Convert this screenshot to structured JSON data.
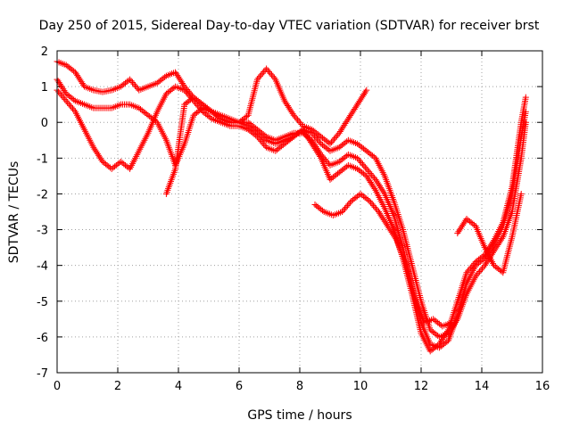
{
  "chart_data": {
    "type": "scatter",
    "title": "Day 250 of 2015, Sidereal Day-to-day VTEC variation (SDTVAR) for receiver brst",
    "xlabel": "GPS time / hours",
    "ylabel": "SDTVAR / TECUs",
    "xlim": [
      0,
      16
    ],
    "ylim": [
      -7,
      2
    ],
    "xticks": [
      0,
      2,
      4,
      6,
      8,
      10,
      12,
      14,
      16
    ],
    "yticks": [
      -7,
      -6,
      -5,
      -4,
      -3,
      -2,
      -1,
      0,
      1,
      2
    ],
    "grid": true,
    "marker": "+",
    "color": "#ff0000",
    "series": [
      {
        "x": [
          0.0,
          0.3,
          0.6,
          0.9,
          1.2,
          1.5,
          1.8,
          2.1,
          2.4,
          2.7,
          3.0,
          3.3,
          3.6,
          3.9,
          4.2,
          4.5,
          4.8,
          5.1,
          5.4,
          5.7,
          6.0,
          6.3,
          6.6,
          6.9,
          7.2,
          7.5,
          7.8,
          8.1,
          8.4,
          8.7,
          9.0,
          9.3,
          9.6,
          9.9,
          10.2,
          10.5,
          10.8,
          11.1,
          11.4,
          11.7,
          12.0,
          12.3,
          12.6,
          12.9,
          13.2,
          13.5,
          13.8,
          14.1,
          14.4,
          14.7,
          15.0,
          15.3,
          15.45
        ],
        "y": [
          1.7,
          1.6,
          1.4,
          1.0,
          0.9,
          0.85,
          0.9,
          1.0,
          1.2,
          0.9,
          1.0,
          1.1,
          1.3,
          1.4,
          1.0,
          0.7,
          0.5,
          0.3,
          0.2,
          0.1,
          0.0,
          -0.1,
          -0.3,
          -0.5,
          -0.6,
          -0.5,
          -0.4,
          -0.2,
          -0.3,
          -0.6,
          -0.8,
          -0.7,
          -0.5,
          -0.6,
          -0.8,
          -1.0,
          -1.5,
          -2.2,
          -3.0,
          -4.0,
          -5.0,
          -5.8,
          -6.0,
          -5.9,
          -5.5,
          -4.8,
          -4.3,
          -4.0,
          -3.6,
          -3.2,
          -2.5,
          -1.0,
          0.0
        ]
      },
      {
        "x": [
          0.0,
          0.3,
          0.6,
          0.9,
          1.2,
          1.5,
          1.8,
          2.1,
          2.4,
          2.7,
          3.0,
          3.3,
          3.6,
          3.9,
          4.2,
          4.5,
          4.8,
          5.1,
          5.4,
          5.7,
          6.0,
          6.3,
          6.6,
          6.9,
          7.2,
          7.5,
          7.8,
          8.1,
          8.4,
          8.7,
          9.0,
          9.3,
          9.6,
          9.9,
          10.2,
          10.5,
          10.8,
          11.1,
          11.4,
          11.7,
          12.0,
          12.3,
          12.6,
          12.9,
          13.2,
          13.5,
          13.8,
          14.1,
          14.4,
          14.7,
          15.0,
          15.3,
          15.45
        ],
        "y": [
          1.2,
          0.8,
          0.6,
          0.5,
          0.4,
          0.4,
          0.4,
          0.5,
          0.5,
          0.4,
          0.2,
          0.0,
          -0.5,
          -1.2,
          -0.6,
          0.2,
          0.4,
          0.3,
          0.1,
          0.0,
          0.0,
          0.0,
          -0.2,
          -0.4,
          -0.5,
          -0.4,
          -0.3,
          -0.3,
          -0.5,
          -0.9,
          -1.2,
          -1.1,
          -0.9,
          -1.0,
          -1.3,
          -1.6,
          -2.0,
          -2.6,
          -3.5,
          -4.6,
          -5.6,
          -6.2,
          -6.3,
          -6.1,
          -5.4,
          -4.5,
          -4.0,
          -3.8,
          -3.4,
          -2.9,
          -2.0,
          -0.4,
          0.3
        ]
      },
      {
        "x": [
          0.0,
          0.3,
          0.6,
          0.9,
          1.2,
          1.5,
          1.8,
          2.1,
          2.4,
          2.7,
          3.0,
          3.3,
          3.6,
          3.9,
          4.2,
          4.5,
          4.8,
          5.1,
          5.4,
          5.7,
          6.0,
          6.3,
          6.6,
          6.9,
          7.2,
          7.5,
          7.8,
          8.1,
          8.4,
          8.7,
          9.0,
          9.3,
          9.6,
          9.9,
          10.2,
          10.5,
          10.8,
          11.1,
          11.4,
          11.7,
          12.0,
          12.3,
          12.6,
          12.9,
          13.2,
          13.5,
          13.8,
          14.1,
          14.4,
          14.7,
          15.0,
          15.3,
          15.45
        ],
        "y": [
          0.9,
          0.6,
          0.3,
          -0.2,
          -0.7,
          -1.1,
          -1.3,
          -1.1,
          -1.3,
          -0.8,
          -0.3,
          0.3,
          0.8,
          1.0,
          0.9,
          0.6,
          0.3,
          0.1,
          0.0,
          -0.1,
          -0.1,
          -0.2,
          -0.4,
          -0.7,
          -0.8,
          -0.6,
          -0.4,
          -0.2,
          -0.6,
          -1.0,
          -1.6,
          -1.4,
          -1.2,
          -1.3,
          -1.5,
          -1.9,
          -2.4,
          -3.0,
          -3.8,
          -4.8,
          -5.9,
          -6.4,
          -6.2,
          -5.8,
          -5.0,
          -4.2,
          -3.9,
          -3.7,
          -3.3,
          -2.8,
          -1.8,
          0.0,
          0.7
        ]
      },
      {
        "x": [
          3.6,
          3.9,
          4.2,
          4.5,
          4.8,
          5.1,
          5.4,
          5.7,
          6.0,
          6.3,
          6.6,
          6.9,
          7.2,
          7.5,
          7.8,
          8.1,
          8.4,
          8.7,
          9.0,
          9.3,
          9.6,
          9.9,
          10.2
        ],
        "y": [
          -2.0,
          -1.3,
          0.5,
          0.7,
          0.5,
          0.3,
          0.1,
          0.0,
          0.0,
          0.2,
          1.2,
          1.5,
          1.2,
          0.6,
          0.2,
          -0.1,
          -0.2,
          -0.4,
          -0.6,
          -0.3,
          0.1,
          0.5,
          0.9
        ]
      },
      {
        "x": [
          8.5,
          8.8,
          9.1,
          9.4,
          9.7,
          10.0,
          10.3,
          10.6,
          10.9,
          11.2,
          11.5,
          11.8,
          12.1,
          12.4,
          12.7,
          13.0
        ],
        "y": [
          -2.3,
          -2.5,
          -2.6,
          -2.5,
          -2.2,
          -2.0,
          -2.2,
          -2.5,
          -2.9,
          -3.3,
          -4.0,
          -4.9,
          -5.6,
          -5.5,
          -5.7,
          -5.6
        ]
      },
      {
        "x": [
          13.2,
          13.5,
          13.8,
          14.1,
          14.4,
          14.7,
          15.0,
          15.3
        ],
        "y": [
          -3.1,
          -2.7,
          -2.9,
          -3.5,
          -4.0,
          -4.2,
          -3.2,
          -2.0
        ]
      }
    ]
  }
}
